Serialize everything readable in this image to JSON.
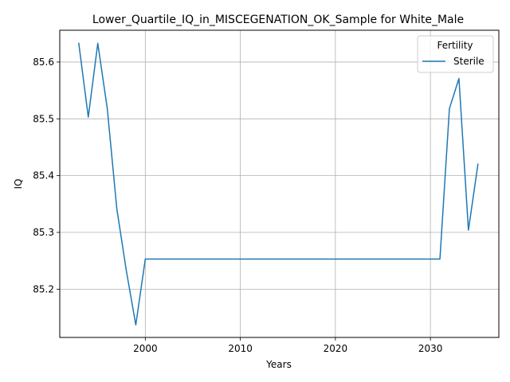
{
  "chart_data": {
    "type": "line",
    "title": "Lower_Quartile_IQ_in_MISCEGENATION_OK_Sample for White_Male",
    "xlabel": "Years",
    "ylabel": "IQ",
    "xlim": [
      1991,
      2037.2
    ],
    "ylim": [
      85.115,
      85.656
    ],
    "xticks": [
      2000,
      2010,
      2020,
      2030
    ],
    "yticks": [
      85.2,
      85.3,
      85.4,
      85.5,
      85.6
    ],
    "grid": true,
    "legend": {
      "title": "Fertility",
      "placement": "top-right"
    },
    "series": [
      {
        "name": "Sterile",
        "color": "#1f77b4",
        "x": [
          1993,
          1994,
          1995,
          1996,
          1997,
          1998,
          1999,
          2000,
          2001,
          2005,
          2010,
          2015,
          2020,
          2025,
          2030,
          2031,
          2032,
          2033,
          2034,
          2035
        ],
        "y": [
          85.633,
          85.503,
          85.633,
          85.518,
          85.342,
          85.233,
          85.137,
          85.253,
          85.253,
          85.253,
          85.253,
          85.253,
          85.253,
          85.253,
          85.253,
          85.253,
          85.518,
          85.571,
          85.304,
          85.42
        ]
      }
    ]
  }
}
